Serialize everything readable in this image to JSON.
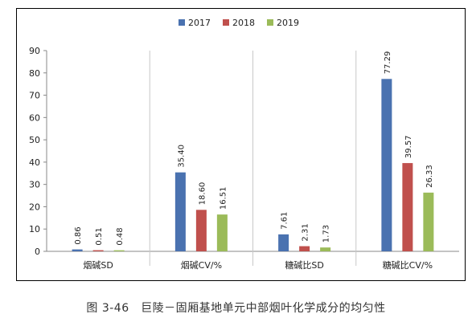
{
  "caption": "图 3-46　巨陵－固厢基地单元中部烟叶化学成分的均匀性",
  "chart_data": {
    "type": "bar",
    "title": "",
    "xlabel": "",
    "ylabel": "",
    "categories": [
      "烟碱SD",
      "烟碱CV/%",
      "糖碱比SD",
      "糖碱比CV/%"
    ],
    "series": [
      {
        "name": "2017",
        "color": "#4a72b0",
        "values": [
          0.86,
          35.4,
          7.61,
          77.29
        ],
        "labels": [
          "0.86",
          "35.40",
          "7.61",
          "77.29"
        ]
      },
      {
        "name": "2018",
        "color": "#c0504d",
        "values": [
          0.51,
          18.6,
          2.31,
          39.57
        ],
        "labels": [
          "0.51",
          "18.60",
          "2.31",
          "39.57"
        ]
      },
      {
        "name": "2019",
        "color": "#9bbb59",
        "values": [
          0.48,
          16.51,
          1.73,
          26.33
        ],
        "labels": [
          "0.48",
          "16.51",
          "1.73",
          "26.33"
        ]
      }
    ],
    "ylim": [
      0,
      90
    ],
    "yticks": [
      0,
      10,
      20,
      30,
      40,
      50,
      60,
      70,
      80,
      90
    ],
    "grid": false,
    "category_separators": true,
    "legend_position": "top-center"
  }
}
